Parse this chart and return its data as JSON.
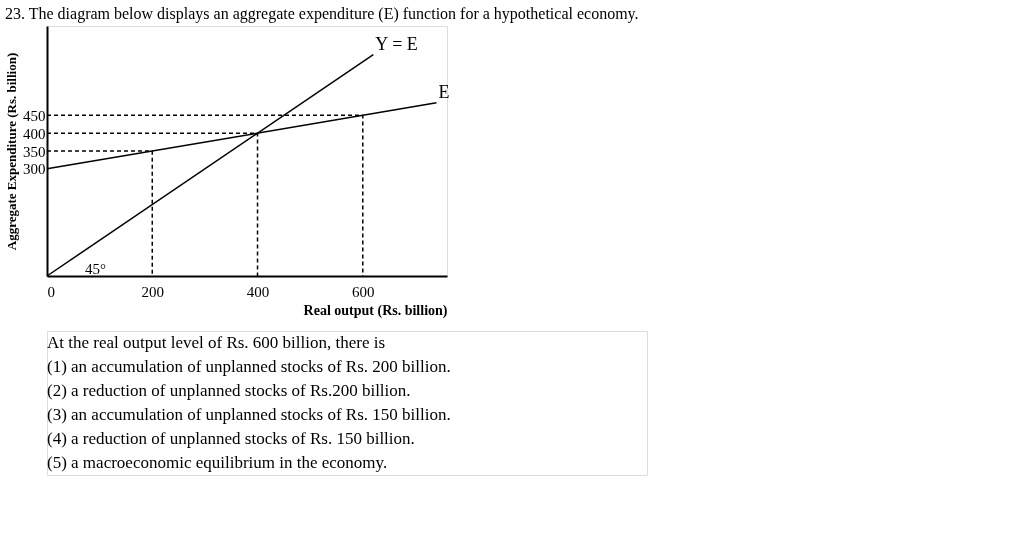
{
  "chart_data": {
    "type": "line",
    "title": "23. The diagram below displays an aggregate expenditure (E) function for a hypothetical economy.",
    "xlabel": "Real output (Rs. billion)",
    "ylabel": "Aggregate Expenditure (Rs. billion)",
    "xlim": [
      0,
      760
    ],
    "ylim": [
      0,
      700
    ],
    "xticks": [
      0,
      200,
      400,
      600
    ],
    "yticks": [
      300,
      350,
      400,
      450
    ],
    "grid": false,
    "marker": "none",
    "series": [
      {
        "name": "Y = E",
        "color": "#000000",
        "x": [
          0,
          620
        ],
        "values": [
          0,
          620
        ]
      },
      {
        "name": "E",
        "color": "#000000",
        "x": [
          0,
          740
        ],
        "values": [
          300,
          485
        ]
      },
      {
        "color": "#000000",
        "line_style": "dashed",
        "x": [
          0,
          200,
          200
        ],
        "values": [
          350,
          350,
          0
        ]
      },
      {
        "color": "#000000",
        "line_style": "dashed",
        "x": [
          0,
          400,
          400
        ],
        "values": [
          400,
          400,
          0
        ]
      },
      {
        "color": "#000000",
        "line_style": "dashed",
        "x": [
          0,
          600,
          600
        ],
        "values": [
          450,
          450,
          0
        ]
      }
    ],
    "annotations": [
      "45°",
      "At the real output level of Rs. 600 billion, there is",
      "(1) an accumulation of unplanned stocks of Rs. 200 billion.",
      "(2) a reduction of unplanned stocks of Rs.200 billion.",
      "(3) an accumulation of unplanned stocks of Rs. 150 billion.",
      "(4) a reduction of unplanned stocks of Rs. 150 billion.",
      "(5) a macroeconomic equilibrium in the economy."
    ]
  }
}
